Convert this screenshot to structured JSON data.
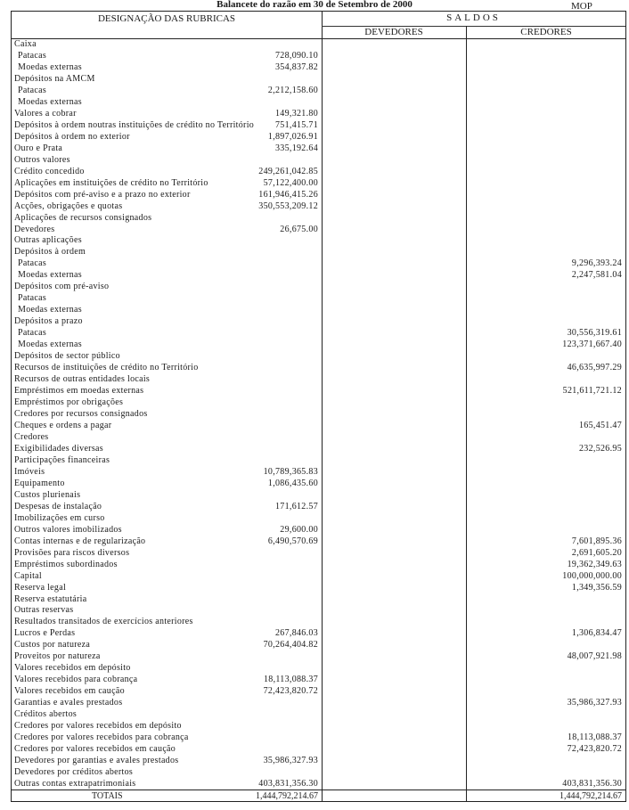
{
  "document": {
    "title": "Balancete do razão em 30 de Setembro de 2000",
    "currency": "MOP"
  },
  "table": {
    "headers": {
      "designation": "DESIGNAÇÃO DAS RUBRICAS",
      "balances": "SALDOS",
      "debit": "DEVEDORES",
      "credit": "CREDORES"
    },
    "rows": [
      {
        "label": "Caixa",
        "indent": false,
        "debit": "",
        "credit": ""
      },
      {
        "label": "Patacas",
        "indent": true,
        "debit": "728,090.10",
        "credit": ""
      },
      {
        "label": "Moedas externas",
        "indent": true,
        "debit": "354,837.82",
        "credit": ""
      },
      {
        "label": "Depósitos na AMCM",
        "indent": false,
        "debit": "",
        "credit": ""
      },
      {
        "label": "Patacas",
        "indent": true,
        "debit": "2,212,158.60",
        "credit": ""
      },
      {
        "label": "Moedas externas",
        "indent": true,
        "debit": "",
        "credit": ""
      },
      {
        "label": "Valores a cobrar",
        "indent": false,
        "debit": "149,321.80",
        "credit": ""
      },
      {
        "label": "Depósitos à ordem noutras instituições de crédito no Território",
        "indent": false,
        "debit": "751,415.71",
        "credit": ""
      },
      {
        "label": "Depósitos à ordem no exterior",
        "indent": false,
        "debit": "1,897,026.91",
        "credit": ""
      },
      {
        "label": "Ouro e Prata",
        "indent": false,
        "debit": "335,192.64",
        "credit": ""
      },
      {
        "label": "Outros valores",
        "indent": false,
        "debit": "",
        "credit": ""
      },
      {
        "label": "Crédito concedido",
        "indent": false,
        "debit": "249,261,042.85",
        "credit": ""
      },
      {
        "label": "Aplicações em instituições de crédito no Território",
        "indent": false,
        "debit": "57,122,400.00",
        "credit": ""
      },
      {
        "label": "Depósitos com pré-aviso e a prazo no exterior",
        "indent": false,
        "debit": "161,946,415.26",
        "credit": ""
      },
      {
        "label": "Acções, obrigações e quotas",
        "indent": false,
        "debit": "350,553,209.12",
        "credit": ""
      },
      {
        "label": "Aplicações de recursos consignados",
        "indent": false,
        "debit": "",
        "credit": ""
      },
      {
        "label": "Devedores",
        "indent": false,
        "debit": "26,675.00",
        "credit": ""
      },
      {
        "label": "Outras aplicações",
        "indent": false,
        "debit": "",
        "credit": ""
      },
      {
        "label": "Depósitos à ordem",
        "indent": false,
        "debit": "",
        "credit": ""
      },
      {
        "label": "Patacas",
        "indent": true,
        "debit": "",
        "credit": "9,296,393.24"
      },
      {
        "label": "Moedas externas",
        "indent": true,
        "debit": "",
        "credit": "2,247,581.04"
      },
      {
        "label": "Depósitos com pré-aviso",
        "indent": false,
        "debit": "",
        "credit": ""
      },
      {
        "label": "Patacas",
        "indent": true,
        "debit": "",
        "credit": ""
      },
      {
        "label": "Moedas externas",
        "indent": true,
        "debit": "",
        "credit": ""
      },
      {
        "label": "Depósitos a prazo",
        "indent": false,
        "debit": "",
        "credit": ""
      },
      {
        "label": "Patacas",
        "indent": true,
        "debit": "",
        "credit": "30,556,319.61"
      },
      {
        "label": "Moedas externas",
        "indent": true,
        "debit": "",
        "credit": "123,371,667.40"
      },
      {
        "label": "Depósitos de sector público",
        "indent": false,
        "debit": "",
        "credit": ""
      },
      {
        "label": "Recursos de instituições de crédito no Território",
        "indent": false,
        "debit": "",
        "credit": "46,635,997.29"
      },
      {
        "label": "Recursos de outras entidades locais",
        "indent": false,
        "debit": "",
        "credit": ""
      },
      {
        "label": "Empréstimos em moedas externas",
        "indent": false,
        "debit": "",
        "credit": "521,611,721.12"
      },
      {
        "label": "Empréstimos por obrigações",
        "indent": false,
        "debit": "",
        "credit": ""
      },
      {
        "label": "Credores por recursos consignados",
        "indent": false,
        "debit": "",
        "credit": ""
      },
      {
        "label": "Cheques e ordens a pagar",
        "indent": false,
        "debit": "",
        "credit": "165,451.47"
      },
      {
        "label": "Credores",
        "indent": false,
        "debit": "",
        "credit": ""
      },
      {
        "label": "Exigibilidades diversas",
        "indent": false,
        "debit": "",
        "credit": "232,526.95"
      },
      {
        "label": "Participações financeiras",
        "indent": false,
        "debit": "",
        "credit": ""
      },
      {
        "label": "Imóveis",
        "indent": false,
        "debit": "10,789,365.83",
        "credit": ""
      },
      {
        "label": "Equipamento",
        "indent": false,
        "debit": "1,086,435.60",
        "credit": ""
      },
      {
        "label": "Custos plurienais",
        "indent": false,
        "debit": "",
        "credit": ""
      },
      {
        "label": "Despesas de instalação",
        "indent": false,
        "debit": "171,612.57",
        "credit": ""
      },
      {
        "label": "Imobilizações em curso",
        "indent": false,
        "debit": "",
        "credit": ""
      },
      {
        "label": "Outros valores imobilizados",
        "indent": false,
        "debit": "29,600.00",
        "credit": ""
      },
      {
        "label": "Contas internas e de regularização",
        "indent": false,
        "debit": "6,490,570.69",
        "credit": "7,601,895.36"
      },
      {
        "label": "Provisões para riscos diversos",
        "indent": false,
        "debit": "",
        "credit": "2,691,605.20"
      },
      {
        "label": "Empréstimos subordinados",
        "indent": false,
        "debit": "",
        "credit": "19,362,349.63"
      },
      {
        "label": "Capital",
        "indent": false,
        "debit": "",
        "credit": "100,000,000.00"
      },
      {
        "label": "Reserva legal",
        "indent": false,
        "debit": "",
        "credit": "1,349,356.59"
      },
      {
        "label": "Reserva estatutária",
        "indent": false,
        "debit": "",
        "credit": ""
      },
      {
        "label": "Outras reservas",
        "indent": false,
        "debit": "",
        "credit": ""
      },
      {
        "label": "Resultados transitados de exercícios anteriores",
        "indent": false,
        "debit": "",
        "credit": ""
      },
      {
        "label": "Lucros e Perdas",
        "indent": false,
        "debit": "267,846.03",
        "credit": "1,306,834.47"
      },
      {
        "label": "Custos por natureza",
        "indent": false,
        "debit": "70,264,404.82",
        "credit": ""
      },
      {
        "label": "Proveitos por natureza",
        "indent": false,
        "debit": "",
        "credit": "48,007,921.98"
      },
      {
        "label": "Valores recebidos em depósito",
        "indent": false,
        "debit": "",
        "credit": ""
      },
      {
        "label": "Valores recebidos para cobrança",
        "indent": false,
        "debit": "18,113,088.37",
        "credit": ""
      },
      {
        "label": "Valores recebidos em caução",
        "indent": false,
        "debit": "72,423,820.72",
        "credit": ""
      },
      {
        "label": "Garantias e avales prestados",
        "indent": false,
        "debit": "",
        "credit": "35,986,327.93"
      },
      {
        "label": "Créditos abertos",
        "indent": false,
        "debit": "",
        "credit": ""
      },
      {
        "label": "Credores por valores recebidos em depósito",
        "indent": false,
        "debit": "",
        "credit": ""
      },
      {
        "label": "Credores por valores recebidos para cobrança",
        "indent": false,
        "debit": "",
        "credit": "18,113,088.37"
      },
      {
        "label": "Credores por valores recebidos em caução",
        "indent": false,
        "debit": "",
        "credit": "72,423,820.72"
      },
      {
        "label": "Devedores por garantias e avales prestados",
        "indent": false,
        "debit": "35,986,327.93",
        "credit": ""
      },
      {
        "label": "Devedores por créditos abertos",
        "indent": false,
        "debit": "",
        "credit": ""
      },
      {
        "label": "Outras contas extrapatrimoniais",
        "indent": false,
        "debit": "403,831,356.30",
        "credit": "403,831,356.30"
      }
    ],
    "totals": {
      "label": "TOTAIS",
      "debit": "1,444,792,214.67",
      "credit": "1,444,792,214.67"
    }
  }
}
